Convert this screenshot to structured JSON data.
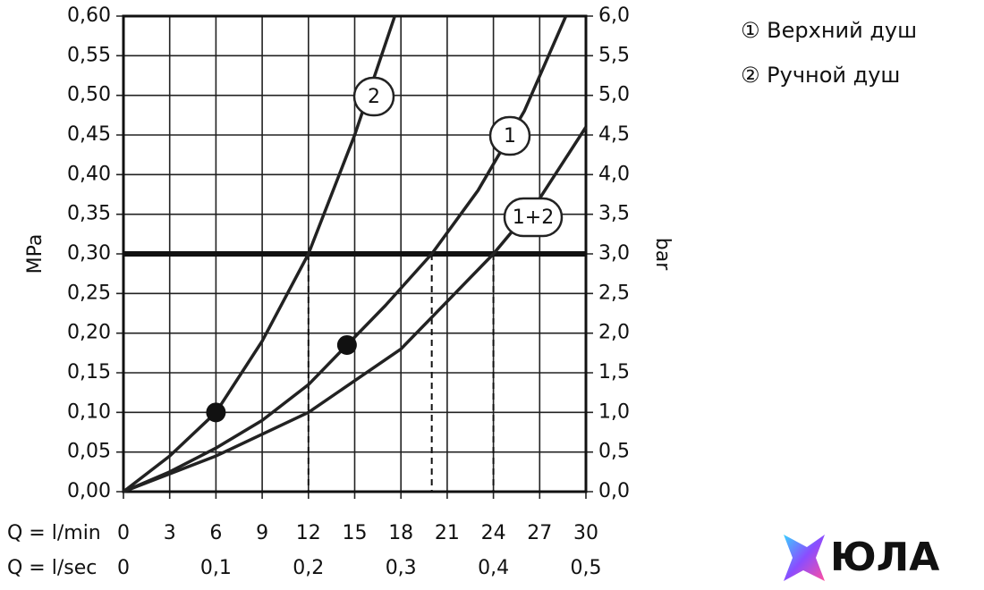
{
  "chart_data": {
    "type": "line",
    "xlabel": "Q = l/min",
    "x2label": "Q = l/sec",
    "ylabel": "MPa",
    "y2label": "bar",
    "xlim": [
      0,
      30
    ],
    "xticks": [
      0,
      3,
      6,
      9,
      12,
      15,
      18,
      21,
      24,
      27,
      30
    ],
    "x2lim": [
      0,
      0.5
    ],
    "x2ticks": [
      0,
      {
        "value": 0.1,
        "label": "0,1"
      },
      {
        "value": 0.2,
        "label": "0,2"
      },
      {
        "value": 0.3,
        "label": "0,3"
      },
      {
        "value": 0.4,
        "label": "0,4"
      },
      {
        "value": 0.5,
        "label": "0,5"
      }
    ],
    "ylim": [
      0,
      0.6
    ],
    "yticks": [
      {
        "value": 0,
        "label": "0,00"
      },
      {
        "value": 0.05,
        "label": "0,05"
      },
      {
        "value": 0.1,
        "label": "0,10"
      },
      {
        "value": 0.15,
        "label": "0,15"
      },
      {
        "value": 0.2,
        "label": "0,20"
      },
      {
        "value": 0.25,
        "label": "0,25"
      },
      {
        "value": 0.3,
        "label": "0,30"
      },
      {
        "value": 0.35,
        "label": "0,35"
      },
      {
        "value": 0.4,
        "label": "0,40"
      },
      {
        "value": 0.45,
        "label": "0,45"
      },
      {
        "value": 0.5,
        "label": "0,50"
      },
      {
        "value": 0.55,
        "label": "0,55"
      },
      {
        "value": 0.6,
        "label": "0,60"
      }
    ],
    "y2lim": [
      0,
      6
    ],
    "y2ticks": [
      {
        "value": 0,
        "label": "0,0"
      },
      {
        "value": 0.5,
        "label": "0,5"
      },
      {
        "value": 1,
        "label": "1,0"
      },
      {
        "value": 1.5,
        "label": "1,5"
      },
      {
        "value": 2,
        "label": "2,0"
      },
      {
        "value": 2.5,
        "label": "2,5"
      },
      {
        "value": 3,
        "label": "3,0"
      },
      {
        "value": 3.5,
        "label": "3,5"
      },
      {
        "value": 4,
        "label": "4,0"
      },
      {
        "value": 4.5,
        "label": "4,5"
      },
      {
        "value": 5,
        "label": "5,0"
      },
      {
        "value": 5.5,
        "label": "5,5"
      },
      {
        "value": 6,
        "label": "6,0"
      }
    ],
    "grid": true,
    "reference_y": 0.3,
    "series": [
      {
        "name": "2",
        "color": "#222222",
        "x": [
          0,
          3,
          6,
          9,
          12,
          15,
          17.6
        ],
        "values": [
          0,
          0.045,
          0.1,
          0.19,
          0.3,
          0.45,
          0.6
        ]
      },
      {
        "name": "1",
        "color": "#222222",
        "x": [
          0,
          3,
          6,
          9,
          12,
          14.5,
          17,
          20,
          23,
          26,
          28.7
        ],
        "values": [
          0,
          0.025,
          0.055,
          0.09,
          0.135,
          0.185,
          0.235,
          0.3,
          0.38,
          0.48,
          0.6
        ]
      },
      {
        "name": "1+2",
        "color": "#222222",
        "x": [
          0,
          6,
          12,
          18,
          24,
          27,
          30
        ],
        "values": [
          0,
          0.045,
          0.1,
          0.18,
          0.3,
          0.37,
          0.46
        ]
      }
    ],
    "markers": [
      {
        "x": 6,
        "y": 0.1
      },
      {
        "x": 14.5,
        "y": 0.185
      }
    ],
    "drop_lines": [
      12,
      20,
      24
    ],
    "legend": [
      "① Верхний душ",
      "② Ручной душ"
    ],
    "logo": "ЮЛА"
  }
}
